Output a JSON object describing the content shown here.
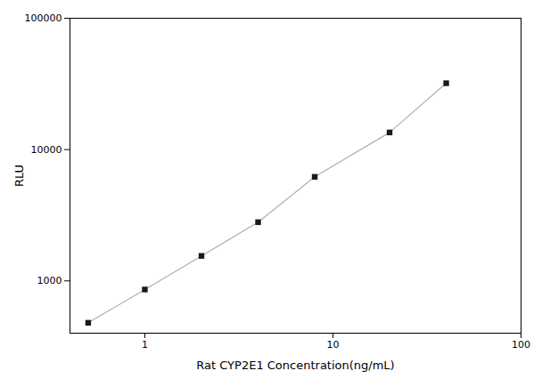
{
  "chart_data": {
    "type": "line",
    "x": [
      0.5,
      1.0,
      2.0,
      4.0,
      8.0,
      20.0,
      40.0
    ],
    "series": [
      {
        "type": "line",
        "color": "#b0b0b0",
        "values": [
          480,
          860,
          1550,
          2800,
          6200,
          13500,
          32000
        ]
      },
      {
        "type": "scatter",
        "color": "#1a1a1a",
        "marker": "square",
        "values": [
          480,
          860,
          1550,
          2800,
          6200,
          13500,
          32000
        ]
      }
    ],
    "x_label": "Rat CYP2E1 Concentration(ng/mL)",
    "y_label": "RLU",
    "xlim": [
      0.4,
      100
    ],
    "ylim": [
      400,
      100000
    ],
    "xticks": [
      1,
      10,
      100
    ],
    "yticks": [
      1000,
      10000,
      100000
    ],
    "log": true,
    "grid": false
  }
}
